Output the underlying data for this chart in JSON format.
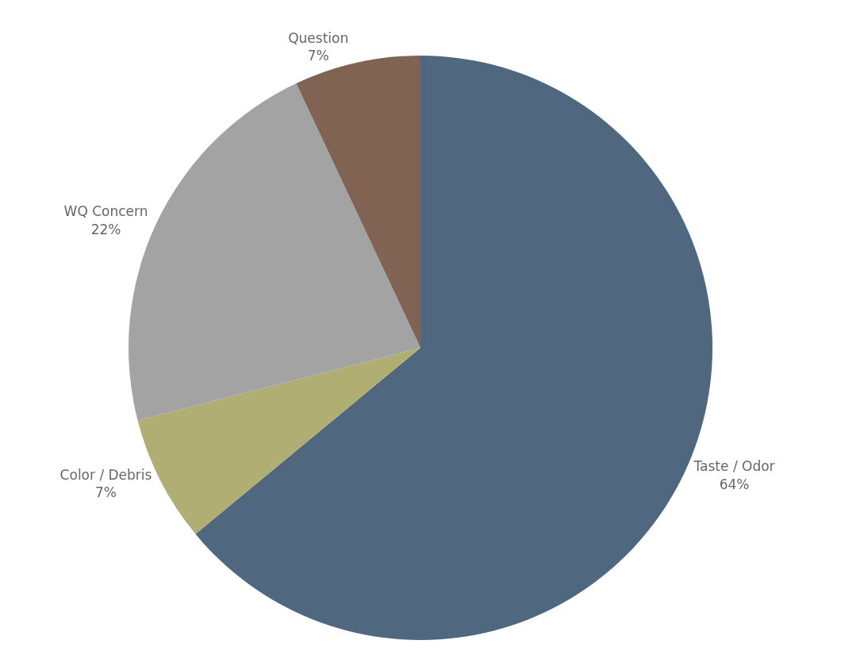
{
  "chart_data": {
    "type": "pie",
    "categories": [
      "Taste / Odor",
      "Color / Debris",
      "WQ Concern",
      "Question"
    ],
    "values": [
      64,
      7,
      22,
      7
    ],
    "colors": [
      "#4f6880",
      "#b0ae72",
      "#a3a3a3",
      "#806353"
    ],
    "value_labels": [
      "64%",
      "7%",
      "22%",
      "7%"
    ],
    "legend": false
  }
}
